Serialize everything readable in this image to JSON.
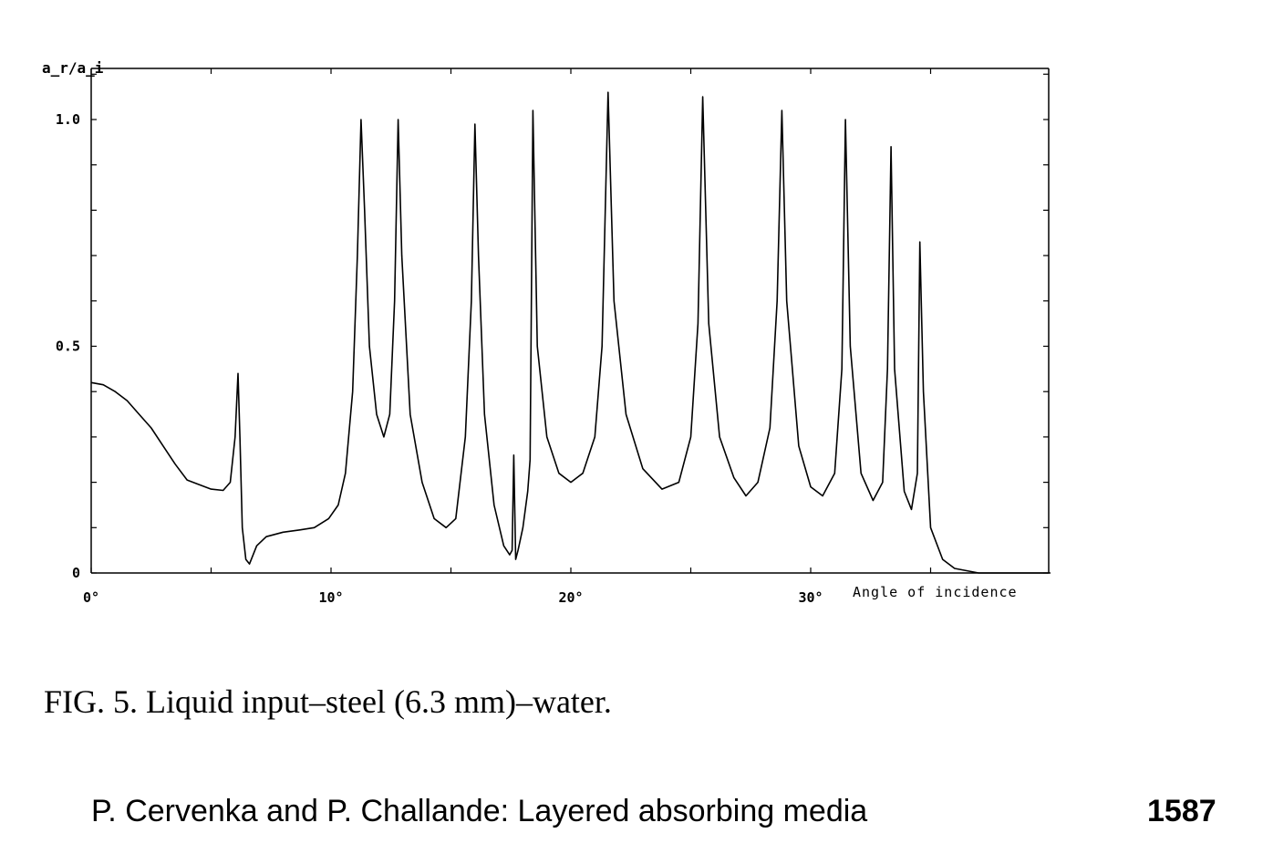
{
  "chart_data": {
    "type": "line",
    "ylabel": "a_r/a_i",
    "xlabel": "Angle of incidence",
    "xlim": [
      0,
      40
    ],
    "ylim": [
      0,
      1.1
    ],
    "x_ticks": [
      {
        "value": 0,
        "label": "0°"
      },
      {
        "value": 10,
        "label": "10°"
      },
      {
        "value": 20,
        "label": "20°"
      },
      {
        "value": 30,
        "label": "30°"
      }
    ],
    "y_ticks": [
      {
        "value": 0,
        "label": "0"
      },
      {
        "value": 0.5,
        "label": "0.5"
      },
      {
        "value": 1.0,
        "label": "1.0"
      }
    ],
    "grid": false,
    "series": [
      {
        "points": [
          [
            0,
            0.42
          ],
          [
            0.5,
            0.415
          ],
          [
            1,
            0.4
          ],
          [
            1.5,
            0.38
          ],
          [
            2,
            0.35
          ],
          [
            2.5,
            0.32
          ],
          [
            3,
            0.28
          ],
          [
            3.5,
            0.24
          ],
          [
            4,
            0.205
          ],
          [
            4.5,
            0.195
          ],
          [
            5,
            0.185
          ],
          [
            5.5,
            0.182
          ],
          [
            5.8,
            0.2
          ],
          [
            6.0,
            0.3
          ],
          [
            6.12,
            0.44
          ],
          [
            6.2,
            0.3
          ],
          [
            6.3,
            0.1
          ],
          [
            6.45,
            0.03
          ],
          [
            6.6,
            0.02
          ],
          [
            6.9,
            0.06
          ],
          [
            7.3,
            0.08
          ],
          [
            8,
            0.09
          ],
          [
            8.7,
            0.095
          ],
          [
            9.3,
            0.1
          ],
          [
            9.9,
            0.12
          ],
          [
            10.3,
            0.15
          ],
          [
            10.6,
            0.22
          ],
          [
            10.9,
            0.4
          ],
          [
            11.1,
            0.7
          ],
          [
            11.25,
            1.0
          ],
          [
            11.4,
            0.8
          ],
          [
            11.6,
            0.5
          ],
          [
            11.9,
            0.35
          ],
          [
            12.2,
            0.3
          ],
          [
            12.45,
            0.35
          ],
          [
            12.65,
            0.6
          ],
          [
            12.8,
            1.0
          ],
          [
            12.95,
            0.7
          ],
          [
            13.3,
            0.35
          ],
          [
            13.8,
            0.2
          ],
          [
            14.3,
            0.12
          ],
          [
            14.8,
            0.1
          ],
          [
            15.2,
            0.12
          ],
          [
            15.6,
            0.3
          ],
          [
            15.85,
            0.6
          ],
          [
            16.0,
            0.99
          ],
          [
            16.15,
            0.7
          ],
          [
            16.4,
            0.35
          ],
          [
            16.8,
            0.15
          ],
          [
            17.2,
            0.06
          ],
          [
            17.45,
            0.04
          ],
          [
            17.55,
            0.05
          ],
          [
            17.62,
            0.26
          ],
          [
            17.7,
            0.03
          ],
          [
            17.8,
            0.05
          ],
          [
            18.0,
            0.1
          ],
          [
            18.2,
            0.18
          ],
          [
            18.3,
            0.25
          ],
          [
            18.42,
            1.02
          ],
          [
            18.6,
            0.5
          ],
          [
            19.0,
            0.3
          ],
          [
            19.5,
            0.22
          ],
          [
            20.0,
            0.2
          ],
          [
            20.5,
            0.22
          ],
          [
            21.0,
            0.3
          ],
          [
            21.3,
            0.5
          ],
          [
            21.55,
            1.06
          ],
          [
            21.8,
            0.6
          ],
          [
            22.3,
            0.35
          ],
          [
            23.0,
            0.23
          ],
          [
            23.8,
            0.185
          ],
          [
            24.5,
            0.2
          ],
          [
            25.0,
            0.3
          ],
          [
            25.3,
            0.55
          ],
          [
            25.5,
            1.05
          ],
          [
            25.75,
            0.55
          ],
          [
            26.2,
            0.3
          ],
          [
            26.8,
            0.21
          ],
          [
            27.3,
            0.17
          ],
          [
            27.8,
            0.2
          ],
          [
            28.3,
            0.32
          ],
          [
            28.6,
            0.6
          ],
          [
            28.8,
            1.02
          ],
          [
            29.0,
            0.6
          ],
          [
            29.5,
            0.28
          ],
          [
            30.0,
            0.19
          ],
          [
            30.5,
            0.17
          ],
          [
            31.0,
            0.22
          ],
          [
            31.3,
            0.45
          ],
          [
            31.45,
            1.0
          ],
          [
            31.65,
            0.5
          ],
          [
            32.1,
            0.22
          ],
          [
            32.6,
            0.16
          ],
          [
            33.0,
            0.2
          ],
          [
            33.2,
            0.45
          ],
          [
            33.35,
            0.94
          ],
          [
            33.5,
            0.45
          ],
          [
            33.9,
            0.18
          ],
          [
            34.2,
            0.14
          ],
          [
            34.45,
            0.22
          ],
          [
            34.55,
            0.73
          ],
          [
            34.7,
            0.4
          ],
          [
            35.0,
            0.1
          ],
          [
            35.5,
            0.03
          ],
          [
            36.0,
            0.01
          ],
          [
            37.0,
            0.0
          ],
          [
            40,
            0.0
          ]
        ]
      }
    ]
  },
  "caption": "FIG. 5. Liquid input–steel (6.3 mm)–water.",
  "footer": {
    "authors": "P. Cervenka and P. Challande: Layered absorbing media",
    "page_number": "1587"
  }
}
